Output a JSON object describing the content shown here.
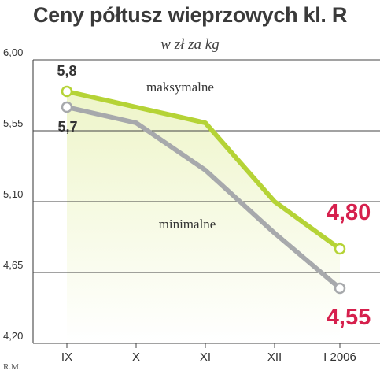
{
  "header": {
    "title": "Ceny półtusz wieprzowych kl. R",
    "subtitle": "w zł za kg",
    "credit": "R.M."
  },
  "colors": {
    "max_line": "#b5d336",
    "min_line": "#a7a9ac",
    "fill": "#eef5c9",
    "highlight_value": "#d6204d",
    "axis_text": "#333333"
  },
  "chart_data": {
    "type": "line",
    "title": "Ceny półtusz wieprzowych kl. R",
    "subtitle": "w zł za kg",
    "categories": [
      "IX",
      "X",
      "XI",
      "XII",
      "I 2006"
    ],
    "ylim": [
      4.2,
      6.0
    ],
    "yticks": [
      "6,00",
      "5,55",
      "5,10",
      "4,65",
      "4,20"
    ],
    "ytick_values": [
      6.0,
      5.55,
      5.1,
      4.65,
      4.2
    ],
    "grid": true,
    "series": [
      {
        "name": "maksymalne",
        "values": [
          5.8,
          5.7,
          5.6,
          5.1,
          4.8
        ]
      },
      {
        "name": "minimalne",
        "values": [
          5.7,
          5.6,
          5.3,
          4.9,
          4.55
        ]
      }
    ],
    "data_labels": {
      "max_first": "5,8",
      "min_first": "5,7",
      "max_last": "4,80",
      "min_last": "4,55"
    }
  }
}
